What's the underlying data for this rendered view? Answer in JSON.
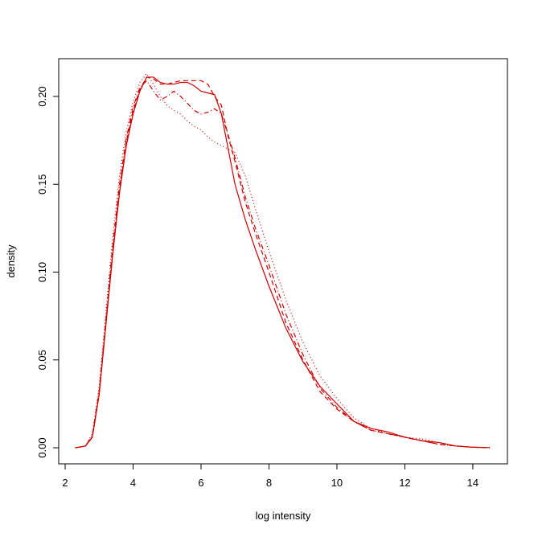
{
  "chart_data": {
    "type": "line",
    "x_label": "log intensity",
    "y_label": "density",
    "x": [
      2.3,
      2.6,
      2.8,
      3.0,
      3.2,
      3.4,
      3.6,
      3.8,
      4.0,
      4.2,
      4.4,
      4.6,
      4.8,
      5.0,
      5.2,
      5.4,
      5.6,
      5.8,
      6.0,
      6.2,
      6.4,
      6.6,
      6.8,
      7.0,
      7.3,
      7.6,
      8.0,
      8.5,
      9.0,
      9.5,
      10.0,
      10.5,
      11.0,
      11.5,
      12.0,
      12.5,
      13.0,
      13.5,
      14.0,
      14.5
    ],
    "series": [
      {
        "color": "#cc0000",
        "dash": "solid",
        "values": [
          0,
          0.001,
          0.006,
          0.03,
          0.07,
          0.11,
          0.145,
          0.172,
          0.19,
          0.203,
          0.211,
          0.211,
          0.208,
          0.207,
          0.207,
          0.208,
          0.208,
          0.206,
          0.203,
          0.202,
          0.201,
          0.19,
          0.17,
          0.15,
          0.13,
          0.113,
          0.092,
          0.068,
          0.049,
          0.035,
          0.025,
          0.015,
          0.011,
          0.009,
          0.006,
          0.004,
          0.003,
          0.001,
          0.0003,
          0.0001
        ]
      },
      {
        "color": "#cc0000",
        "dash": "dashed",
        "values": [
          0,
          0.001,
          0.006,
          0.031,
          0.071,
          0.112,
          0.147,
          0.174,
          0.192,
          0.204,
          0.211,
          0.21,
          0.207,
          0.207,
          0.208,
          0.209,
          0.209,
          0.209,
          0.209,
          0.207,
          0.2,
          0.195,
          0.177,
          0.163,
          0.14,
          0.122,
          0.1,
          0.071,
          0.05,
          0.032,
          0.022,
          0.015,
          0.01,
          0.008,
          0.006,
          0.004,
          0.002,
          0.001,
          0.0003,
          0.0001
        ]
      },
      {
        "color": "#cc0000",
        "dash": "dotted",
        "values": [
          0,
          0.001,
          0.008,
          0.035,
          0.077,
          0.12,
          0.155,
          0.18,
          0.197,
          0.208,
          0.213,
          0.207,
          0.2,
          0.195,
          0.192,
          0.19,
          0.186,
          0.183,
          0.181,
          0.177,
          0.174,
          0.172,
          0.17,
          0.168,
          0.155,
          0.136,
          0.112,
          0.084,
          0.06,
          0.041,
          0.028,
          0.017,
          0.011,
          0.008,
          0.006,
          0.005,
          0.003,
          0.001,
          0.0003,
          0.0001
        ]
      },
      {
        "color": "#cc0000",
        "dash": "dotdash",
        "values": [
          0,
          0.001,
          0.007,
          0.032,
          0.073,
          0.115,
          0.15,
          0.176,
          0.194,
          0.205,
          0.209,
          0.203,
          0.198,
          0.2,
          0.203,
          0.2,
          0.196,
          0.192,
          0.19,
          0.191,
          0.193,
          0.19,
          0.178,
          0.165,
          0.143,
          0.125,
          0.104,
          0.076,
          0.053,
          0.034,
          0.023,
          0.015,
          0.01,
          0.008,
          0.006,
          0.004,
          0.002,
          0.001,
          0.0003,
          0.0001
        ]
      }
    ],
    "xlim": [
      1.81,
      15.02
    ],
    "ylim": [
      -0.00915,
      0.2215
    ],
    "xticks": [
      2,
      4,
      6,
      8,
      10,
      12,
      14
    ],
    "yticks": [
      {
        "value": 0,
        "label": "0.00"
      },
      0.05,
      {
        "value": 0.1,
        "label": "0.10"
      },
      0.15,
      {
        "value": 0.2,
        "label": "0.20"
      }
    ]
  }
}
